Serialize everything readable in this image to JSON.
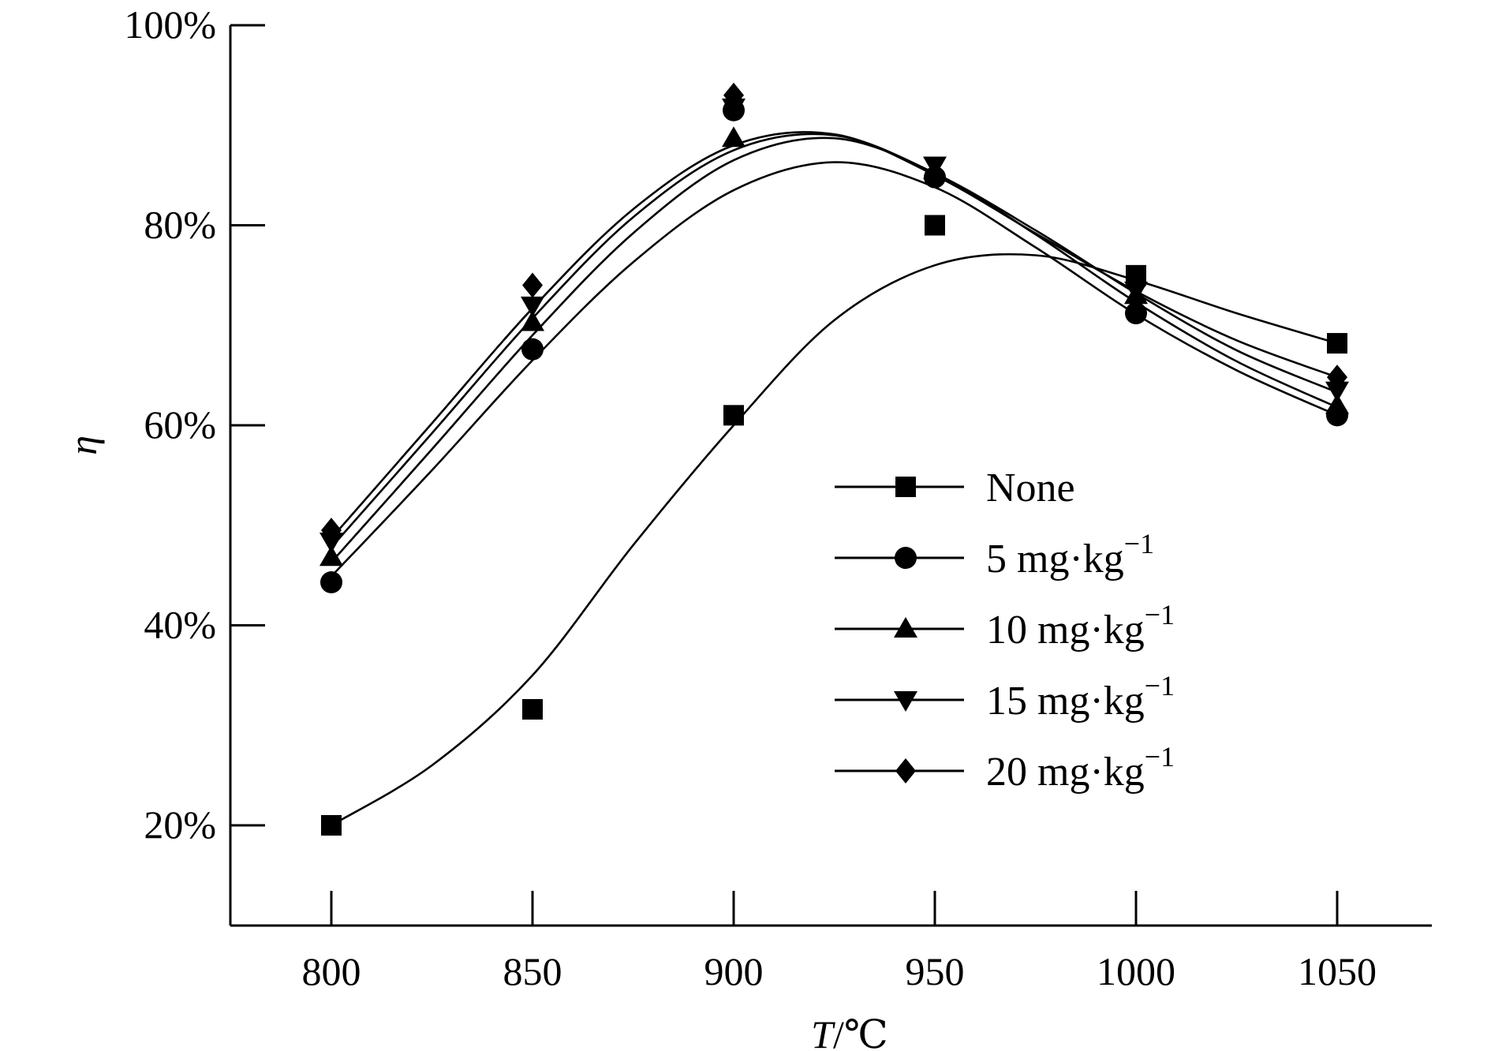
{
  "chart_data": {
    "type": "line",
    "title": "",
    "xlabel": "T/℃",
    "xlabel_italic": "T",
    "xlabel_unit": "/℃",
    "ylabel": "η",
    "x": [
      800,
      850,
      900,
      950,
      1000,
      1050
    ],
    "xlim": [
      775,
      1075
    ],
    "ylim": [
      10,
      100
    ],
    "x_ticks": [
      800,
      850,
      900,
      950,
      1000,
      1050
    ],
    "x_tick_labels": [
      "800",
      "850",
      "900",
      "950",
      "1000",
      "1050"
    ],
    "y_ticks": [
      20,
      40,
      60,
      80,
      100
    ],
    "y_tick_labels": [
      "20%",
      "40%",
      "60%",
      "80%",
      "100%"
    ],
    "legend_position": "center-right",
    "series": [
      {
        "name": "None",
        "label_main": "None",
        "label_sup": "",
        "marker": "square",
        "values": [
          20,
          31.6,
          61,
          80,
          75,
          68.2
        ],
        "fit": [
          [
            800,
            20
          ],
          [
            825,
            26
          ],
          [
            850,
            35
          ],
          [
            875,
            48
          ],
          [
            900,
            60
          ],
          [
            925,
            70.5
          ],
          [
            950,
            76
          ],
          [
            975,
            77
          ],
          [
            1000,
            74.5
          ],
          [
            1025,
            71.2
          ],
          [
            1050,
            68.2
          ]
        ]
      },
      {
        "name": "5 mg·kg−1",
        "label_main": "5 mg·kg",
        "label_sup": "−1",
        "marker": "circle",
        "values": [
          44.3,
          67.6,
          91.5,
          84.8,
          71.2,
          61
        ],
        "fit": [
          [
            800,
            44.9
          ],
          [
            825,
            55.5
          ],
          [
            850,
            66.5
          ],
          [
            875,
            76.3
          ],
          [
            900,
            83.5
          ],
          [
            925,
            86.3
          ],
          [
            950,
            83.8
          ],
          [
            975,
            77.8
          ],
          [
            1000,
            71.1
          ],
          [
            1025,
            65.5
          ],
          [
            1050,
            61
          ]
        ]
      },
      {
        "name": "10 mg·kg−1",
        "label_main": "10 mg·kg",
        "label_sup": "−1",
        "marker": "triangle-up",
        "values": [
          46.8,
          70.3,
          88.7,
          85.5,
          73,
          62
        ],
        "fit": [
          [
            800,
            46.3
          ],
          [
            825,
            57.6
          ],
          [
            850,
            69
          ],
          [
            875,
            79.2
          ],
          [
            900,
            86.5
          ],
          [
            925,
            88.7
          ],
          [
            950,
            85.2
          ],
          [
            975,
            79.1
          ],
          [
            1000,
            72.3
          ],
          [
            1025,
            66.4
          ],
          [
            1050,
            61.8
          ]
        ]
      },
      {
        "name": "15 mg·kg−1",
        "label_main": "15 mg·kg",
        "label_sup": "−1",
        "marker": "triangle-down",
        "values": [
          48.4,
          72,
          91.8,
          86,
          73.5,
          63.5
        ],
        "fit": [
          [
            800,
            47.8
          ],
          [
            825,
            59.2
          ],
          [
            850,
            70.7
          ],
          [
            875,
            80.8
          ],
          [
            900,
            87.5
          ],
          [
            925,
            89
          ],
          [
            950,
            85.2
          ],
          [
            975,
            79.5
          ],
          [
            1000,
            73.2
          ],
          [
            1025,
            67.5
          ],
          [
            1050,
            63.3
          ]
        ]
      },
      {
        "name": "20 mg·kg−1",
        "label_main": "20 mg·kg",
        "label_sup": "−1",
        "marker": "diamond",
        "values": [
          49.5,
          74,
          93,
          85,
          74,
          64.8
        ],
        "fit": [
          [
            800,
            48.7
          ],
          [
            825,
            60.2
          ],
          [
            850,
            71.7
          ],
          [
            875,
            81.6
          ],
          [
            900,
            88
          ],
          [
            925,
            89.1
          ],
          [
            950,
            85
          ],
          [
            975,
            79.2
          ],
          [
            1000,
            73.4
          ],
          [
            1025,
            68.5
          ],
          [
            1050,
            64.8
          ]
        ]
      }
    ]
  }
}
